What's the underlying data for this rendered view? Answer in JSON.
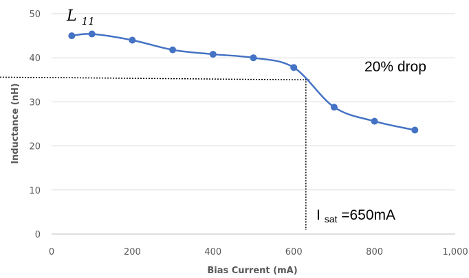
{
  "chart_data": {
    "type": "line",
    "xlabel": "Bias Current (mA)",
    "ylabel": "Inductance (nH)",
    "xlim": [
      0,
      1000
    ],
    "ylim": [
      0,
      50
    ],
    "x_ticks": [
      "0",
      "200",
      "400",
      "600",
      "800",
      "1,000"
    ],
    "y_ticks": [
      "0",
      "10",
      "20",
      "30",
      "40",
      "50"
    ],
    "grid": "horizontal",
    "series": [
      {
        "name": "L11",
        "color": "#4472c4",
        "x": [
          50,
          100,
          200,
          300,
          400,
          500,
          600,
          700,
          800,
          900
        ],
        "y": [
          45,
          45.4,
          44,
          41.8,
          40.8,
          40,
          37.8,
          28.8,
          25.6,
          23.6
        ]
      }
    ],
    "annotations": {
      "drop_label": "20% drop",
      "drop_level": 35.3,
      "isat_label_main": "I",
      "isat_label_sub": "sat",
      "isat_label_rest": "=650mA",
      "isat_x": 630,
      "series_label_main": "L",
      "series_label_sub": "11"
    }
  }
}
